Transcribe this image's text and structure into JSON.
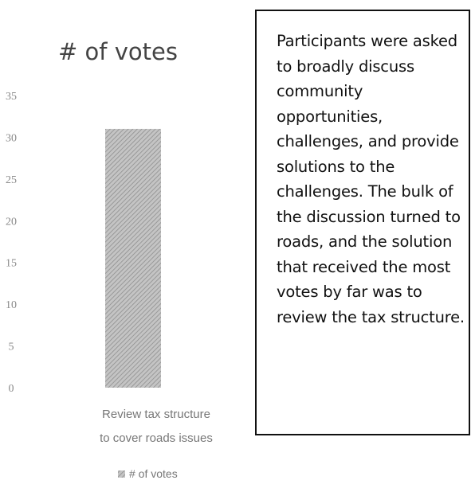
{
  "chart_data": {
    "type": "bar",
    "title": "# of votes",
    "categories": [
      "Review tax structure to cover roads issues"
    ],
    "category_lines": [
      "Review tax structure",
      "to cover roads issues"
    ],
    "series": [
      {
        "name": "# of votes",
        "values": [
          31
        ]
      }
    ],
    "ylim": [
      0,
      35
    ],
    "yticks": [
      "0",
      "5",
      "10",
      "15",
      "20",
      "25",
      "30",
      "35"
    ],
    "xlabel": "",
    "ylabel": "",
    "grid": false,
    "legend": "bottom",
    "bar_color": "#b0b0b0"
  },
  "textbox": {
    "text": "Participants were asked to broadly discuss community opportunities, challenges, and provide solutions to the challenges. The bulk of the discussion turned to roads, and the solution that received the most votes by far was to review the tax structure."
  }
}
